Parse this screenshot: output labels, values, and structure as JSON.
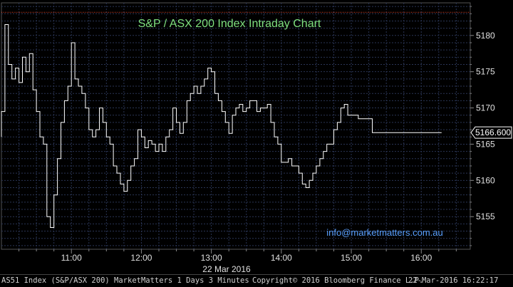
{
  "chart_data": {
    "type": "line",
    "title": "S&P / ASX 200 Index Intraday Chart",
    "annotation": "info@marketmatters.com.au",
    "xlabel": "22 Mar 2016",
    "x_tick_labels": [
      "11:00",
      "12:00",
      "13:00",
      "14:00",
      "15:00",
      "16:00"
    ],
    "y_tick_values": [
      5155,
      5160,
      5165,
      5170,
      5175,
      5180
    ],
    "ylim": [
      5150.5,
      5184.5
    ],
    "xlim": [
      "10:00",
      "16:42"
    ],
    "last_price_label": "5166.600",
    "reference_line": {
      "value": 5183.2,
      "style": "dotted",
      "color": "#e04020"
    },
    "grid": true,
    "colors": {
      "background": "#000000",
      "line": "#ffffff",
      "grid": "#2a3555",
      "title": "#7fe07f",
      "annotation": "#5aa0ff",
      "axis_text": "#e0e0e0"
    },
    "series": [
      {
        "x": [
          "10:00",
          "10:03",
          "10:06",
          "10:09",
          "10:12",
          "10:15",
          "10:18",
          "10:21",
          "10:24",
          "10:27",
          "10:30",
          "10:33",
          "10:36",
          "10:39",
          "10:42",
          "10:45",
          "10:48",
          "10:51",
          "10:54",
          "10:57",
          "11:00",
          "11:03",
          "11:06",
          "11:09",
          "11:12",
          "11:15",
          "11:18",
          "11:21",
          "11:24",
          "11:27",
          "11:30",
          "11:33",
          "11:36",
          "11:39",
          "11:42",
          "11:45",
          "11:48",
          "11:51",
          "11:54",
          "11:57",
          "12:00",
          "12:03",
          "12:06",
          "12:09",
          "12:12",
          "12:15",
          "12:18",
          "12:21",
          "12:24",
          "12:27",
          "12:30",
          "12:33",
          "12:36",
          "12:39",
          "12:42",
          "12:45",
          "12:48",
          "12:51",
          "12:54",
          "12:57",
          "13:00",
          "13:03",
          "13:06",
          "13:09",
          "13:12",
          "13:15",
          "13:18",
          "13:21",
          "13:24",
          "13:27",
          "13:30",
          "13:33",
          "13:36",
          "13:39",
          "13:42",
          "13:45",
          "13:48",
          "13:51",
          "13:54",
          "13:57",
          "14:00",
          "14:03",
          "14:06",
          "14:09",
          "14:12",
          "14:15",
          "14:18",
          "14:21",
          "14:24",
          "14:27",
          "14:30",
          "14:33",
          "14:36",
          "14:39",
          "14:42",
          "14:45",
          "14:48",
          "14:51",
          "14:54",
          "14:57",
          "15:00",
          "15:03",
          "15:06",
          "15:09",
          "15:12",
          "15:15",
          "15:18",
          "15:21",
          "15:24",
          "15:27",
          "15:30",
          "15:33",
          "15:36",
          "15:39",
          "15:42",
          "15:45",
          "15:48",
          "15:51",
          "15:54",
          "15:57",
          "16:00",
          "16:03",
          "16:06",
          "16:09",
          "16:12",
          "16:15"
        ],
        "values": [
          5166,
          5169.5,
          5181.5,
          5176,
          5174,
          5175.5,
          5173.5,
          5177,
          5175,
          5177.5,
          5172.5,
          5169.5,
          5166,
          5165,
          5155,
          5153.5,
          5158,
          5163,
          5168,
          5171,
          5173,
          5179,
          5174,
          5173,
          5172,
          5170,
          5167,
          5166,
          5167,
          5170,
          5168,
          5166,
          5165,
          5162,
          5161,
          5159.5,
          5158.5,
          5160,
          5162,
          5163,
          5167,
          5166,
          5164.5,
          5165.5,
          5165,
          5164,
          5165,
          5164,
          5166,
          5167,
          5170,
          5168,
          5166.5,
          5168,
          5171,
          5172,
          5173,
          5172,
          5173,
          5174,
          5175.5,
          5175,
          5172,
          5171,
          5169.5,
          5168,
          5166.5,
          5169,
          5170,
          5170.5,
          5169.5,
          5170,
          5171,
          5171,
          5169.5,
          5170,
          5170,
          5170.5,
          5168,
          5166,
          5165,
          5162.5,
          5162.5,
          5163,
          5162,
          5162,
          5161,
          5159.5,
          5159,
          5160,
          5161,
          5162,
          5163,
          5164,
          5165,
          5165,
          5167,
          5168,
          5170,
          5170.5,
          5169,
          5169,
          5169,
          5168.5,
          5168.5,
          5168.5,
          5168.5,
          5166.6,
          5166.6,
          5166.6,
          5166.6,
          5166.6,
          5166.6,
          5166.6,
          5166.6,
          5166.6,
          5166.6,
          5166.6,
          5166.6,
          5166.6,
          5166.6,
          5166.6,
          5166.6,
          5166.6,
          5166.6,
          5166.6
        ]
      }
    ]
  },
  "footer": {
    "left": "AS51 Index (S&P/ASX 200) MarketMatters 1 Days 3 Minutes",
    "center": "Copyright© 2016 Bloomberg Finance L.P.",
    "right": "22-Mar-2016 16:22:17"
  }
}
